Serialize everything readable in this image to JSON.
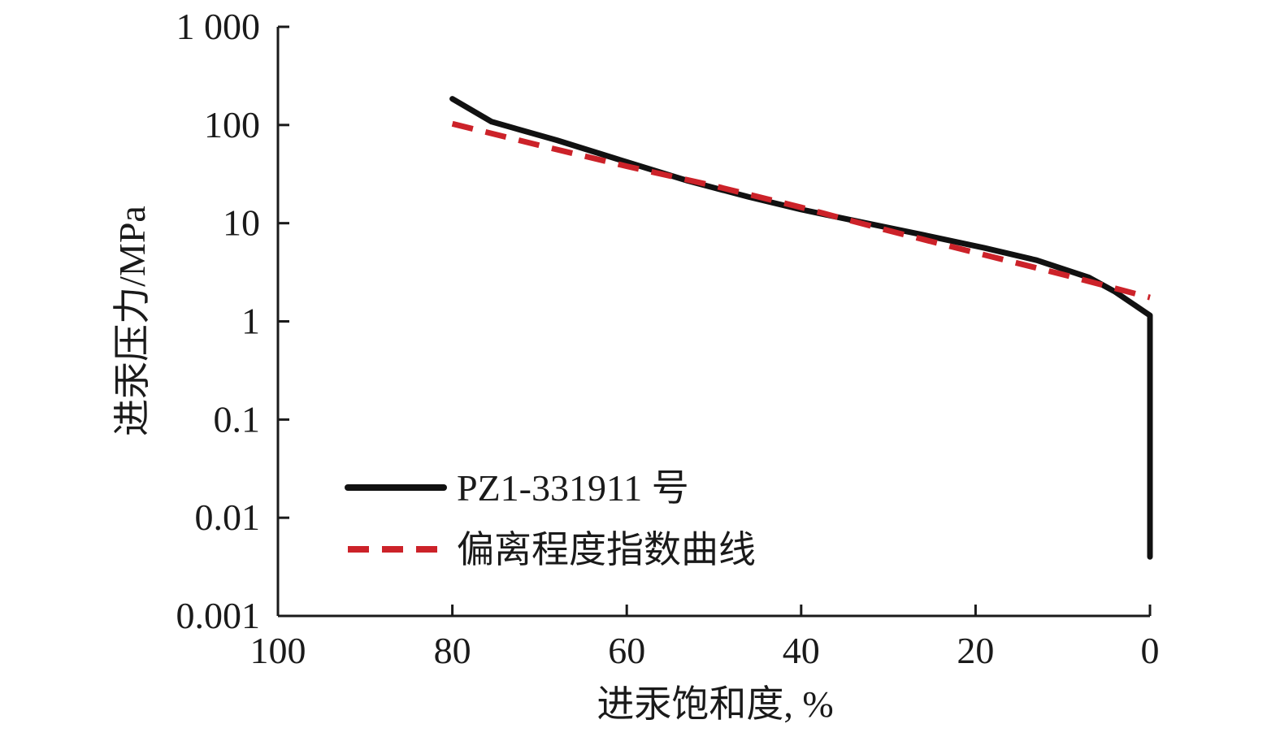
{
  "chart_data": {
    "type": "line",
    "xlabel": "进汞饱和度, %",
    "ylabel": "进汞压力/MPa",
    "x_reversed": true,
    "xlim": [
      100,
      0
    ],
    "xticks": [
      100,
      80,
      60,
      40,
      20,
      0
    ],
    "xtick_labels": [
      "100",
      "80",
      "60",
      "40",
      "20",
      "0"
    ],
    "y_scale": "log",
    "ylim": [
      0.001,
      1000
    ],
    "yticks": [
      0.001,
      0.01,
      0.1,
      1,
      10,
      100,
      1000
    ],
    "ytick_labels": [
      "0.001",
      "0.01",
      "0.1",
      "1",
      "10",
      "100",
      "1 000"
    ],
    "grid": false,
    "legend_position": "bottom-left",
    "series": [
      {
        "name": "PZ1-331911 号",
        "color": "#111111",
        "style": "solid",
        "points": [
          {
            "x": 80,
            "y": 185
          },
          {
            "x": 75.5,
            "y": 108
          },
          {
            "x": 68,
            "y": 70
          },
          {
            "x": 60,
            "y": 42
          },
          {
            "x": 53,
            "y": 27
          },
          {
            "x": 46,
            "y": 18.5
          },
          {
            "x": 40,
            "y": 13.8
          },
          {
            "x": 33,
            "y": 10.2
          },
          {
            "x": 26,
            "y": 7.6
          },
          {
            "x": 19,
            "y": 5.6
          },
          {
            "x": 13,
            "y": 4.2
          },
          {
            "x": 7,
            "y": 2.8
          },
          {
            "x": 4,
            "y": 2.0
          },
          {
            "x": 0,
            "y": 1.15
          },
          {
            "x": 0,
            "y": 0.004
          }
        ]
      },
      {
        "name": "偏离程度指数曲线",
        "color": "#cc2229",
        "style": "dashed",
        "points": [
          {
            "x": 80,
            "y": 103
          },
          {
            "x": 70,
            "y": 62
          },
          {
            "x": 60,
            "y": 38
          },
          {
            "x": 50,
            "y": 24
          },
          {
            "x": 40,
            "y": 14.5
          },
          {
            "x": 30,
            "y": 8.4
          },
          {
            "x": 20,
            "y": 5.0
          },
          {
            "x": 10,
            "y": 3.0
          },
          {
            "x": 0,
            "y": 1.75
          }
        ]
      }
    ]
  }
}
